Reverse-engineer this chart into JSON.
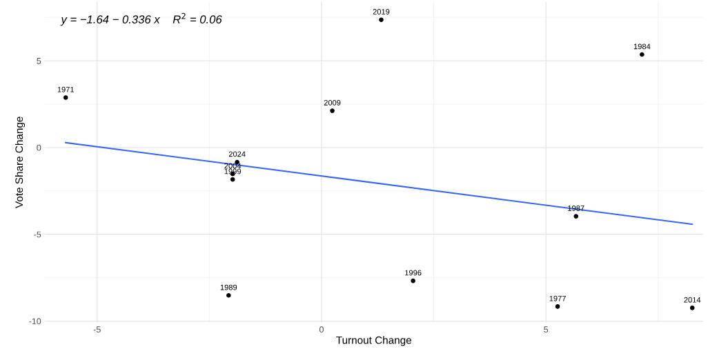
{
  "chart_data": {
    "type": "scatter",
    "xlabel": "Turnout Change",
    "ylabel": "Vote Share Change",
    "xlim": [
      -6.17,
      8.5
    ],
    "ylim": [
      -10.1,
      8.4
    ],
    "xticks": [
      -5,
      0,
      5
    ],
    "yticks": [
      -10,
      -5,
      0,
      5
    ],
    "grid": true,
    "series": [
      {
        "marker": "circle",
        "color": "#000000",
        "x": [
          -5.7,
          1.33,
          7.14,
          0.24,
          -1.88,
          -1.98,
          -1.98,
          5.67,
          2.04,
          -2.07,
          5.26,
          8.26
        ],
        "values": [
          2.88,
          7.36,
          5.36,
          2.12,
          -0.84,
          -1.52,
          -1.84,
          -3.96,
          -7.68,
          -8.52,
          -9.16,
          -9.24
        ]
      },
      {
        "type": "line",
        "color": "#3366ff",
        "line_style": "solid",
        "x": [
          -5.7,
          8.26
        ],
        "values": [
          0.28,
          -4.42
        ]
      }
    ],
    "annotations": [
      {
        "text": "1971",
        "x": -5.7,
        "y": 2.88
      },
      {
        "text": "2019",
        "x": 1.33,
        "y": 7.36
      },
      {
        "text": "1984",
        "x": 7.14,
        "y": 5.36
      },
      {
        "text": "2009",
        "x": 0.24,
        "y": 2.12
      },
      {
        "text": "2024",
        "x": -1.88,
        "y": -0.84
      },
      {
        "text": "2004",
        "x": -1.98,
        "y": -1.52
      },
      {
        "text": "1999",
        "x": -1.98,
        "y": -1.84
      },
      {
        "text": "1987",
        "x": 5.67,
        "y": -3.96
      },
      {
        "text": "1996",
        "x": 2.04,
        "y": -7.68
      },
      {
        "text": "1989",
        "x": -2.07,
        "y": -8.52
      },
      {
        "text": "1977",
        "x": 5.26,
        "y": -9.16
      },
      {
        "text": "2014",
        "x": 8.26,
        "y": -9.24
      },
      "y = −1.64 − 0.336 x    R$^{2}$ = 0.06"
    ]
  }
}
